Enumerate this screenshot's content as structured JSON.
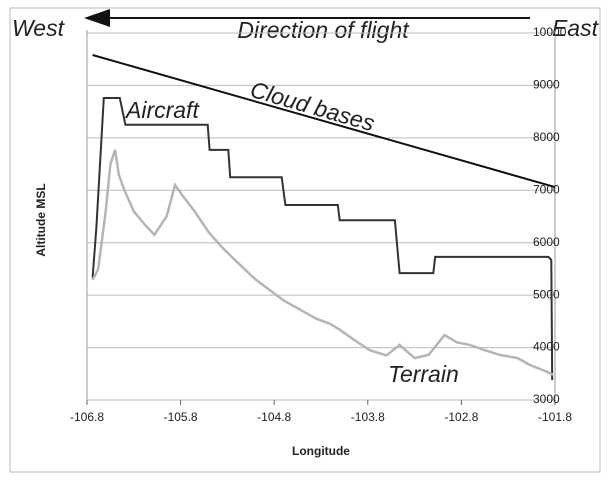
{
  "chart_data": {
    "type": "line",
    "annotations": [
      "West",
      "Direction of flight",
      "East"
    ],
    "xlabel": "Longitude",
    "ylabel": "Altitude MSL",
    "xlim": [
      -106.8,
      -101.8
    ],
    "xticks": [
      -106.8,
      -105.8,
      -104.8,
      -103.8,
      -102.8,
      -101.8
    ],
    "ylim": [
      3000,
      10000
    ],
    "yticks": [
      3000,
      4000,
      5000,
      6000,
      7000,
      8000,
      9000,
      10000
    ],
    "grid": true,
    "series": [
      {
        "name": "Cloud bases",
        "color": "#111111",
        "x": [
          -106.74,
          -101.8
        ],
        "values": [
          9580,
          7060
        ]
      },
      {
        "name": "Aircraft",
        "color": "#333333",
        "x": [
          -106.74,
          -106.7,
          -106.62,
          -106.45,
          -106.39,
          -105.51,
          -105.49,
          -105.29,
          -105.27,
          -104.72,
          -104.68,
          -104.12,
          -104.1,
          -103.51,
          -103.46,
          -103.1,
          -103.08,
          -101.87,
          -101.84,
          -101.83
        ],
        "values": [
          5330,
          6300,
          8760,
          8760,
          8250,
          8250,
          7770,
          7770,
          7250,
          7250,
          6720,
          6720,
          6430,
          6430,
          5420,
          5420,
          5730,
          5730,
          5670,
          3380
        ]
      },
      {
        "name": "Terrain",
        "color": "#b5b5b5",
        "x": [
          -106.74,
          -106.68,
          -106.6,
          -106.55,
          -106.5,
          -106.46,
          -106.4,
          -106.3,
          -106.18,
          -106.08,
          -105.95,
          -105.86,
          -105.78,
          -105.65,
          -105.5,
          -105.35,
          -105.16,
          -105.0,
          -104.85,
          -104.7,
          -104.52,
          -104.35,
          -104.2,
          -104.1,
          -103.95,
          -103.78,
          -103.6,
          -103.46,
          -103.3,
          -103.15,
          -102.98,
          -102.85,
          -102.71,
          -102.55,
          -102.39,
          -102.2,
          -102.07,
          -101.9,
          -101.82
        ],
        "values": [
          5290,
          5500,
          6600,
          7500,
          7770,
          7300,
          7000,
          6600,
          6340,
          6150,
          6500,
          7100,
          6900,
          6600,
          6200,
          5900,
          5570,
          5300,
          5100,
          4900,
          4720,
          4550,
          4450,
          4340,
          4150,
          3950,
          3850,
          4050,
          3800,
          3860,
          4240,
          4100,
          4050,
          3950,
          3860,
          3800,
          3670,
          3550,
          3480
        ]
      }
    ]
  }
}
